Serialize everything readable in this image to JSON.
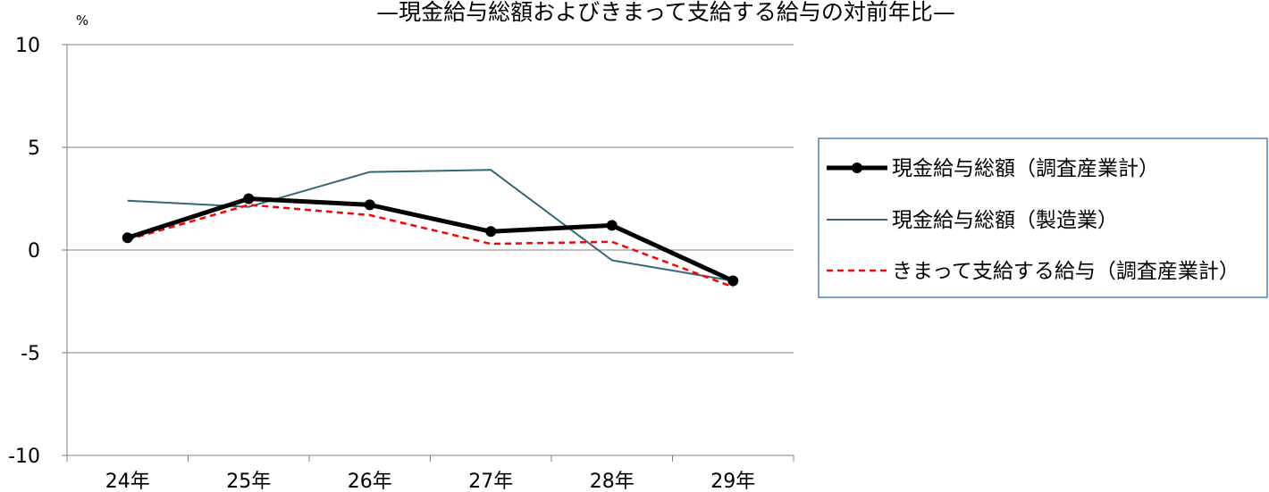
{
  "chart_data": {
    "type": "line",
    "title": "—現金給与総額およびきまって支給する給与の対前年比—",
    "ylabel": "%",
    "xlabel": "",
    "categories": [
      "24年",
      "25年",
      "26年",
      "27年",
      "28年",
      "29年"
    ],
    "ylim": [
      -10,
      10
    ],
    "yticks": [
      10,
      5,
      0,
      -5,
      -10
    ],
    "grid": true,
    "legend_position": "right",
    "series": [
      {
        "name": "現金給与総額（調査産業計）",
        "values": [
          0.6,
          2.5,
          2.2,
          0.9,
          1.2,
          -1.5
        ],
        "color": "#000000",
        "style": "solid",
        "markers": true
      },
      {
        "name": "現金給与総額（製造業）",
        "values": [
          2.4,
          2.1,
          3.8,
          3.9,
          -0.5,
          -1.5
        ],
        "color": "#336677",
        "style": "solid",
        "markers": false
      },
      {
        "name": "きまって支給する給与（調査産業計）",
        "values": [
          0.5,
          2.2,
          1.7,
          0.3,
          0.4,
          -1.8
        ],
        "color": "#ff0000",
        "style": "dashed",
        "markers": false
      }
    ]
  }
}
